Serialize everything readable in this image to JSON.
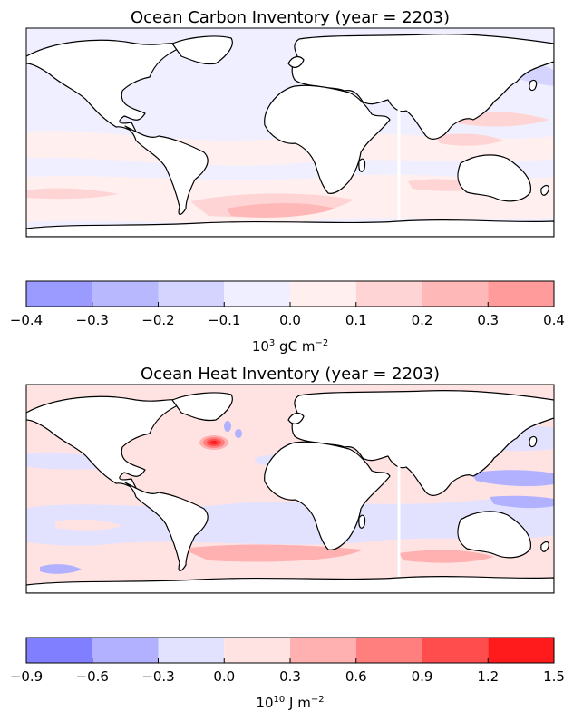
{
  "chart_data": [
    {
      "type": "heatmap",
      "title": "Ocean Carbon Inventory (year = 2203)",
      "map": "world-map",
      "colorbar": {
        "boundaries": [
          -0.4,
          -0.3,
          -0.2,
          -0.1,
          0.0,
          0.1,
          0.2,
          0.3,
          0.4
        ],
        "tick_labels": [
          "−0.4",
          "−0.3",
          "−0.2",
          "−0.1",
          "0.0",
          "0.1",
          "0.2",
          "0.3",
          "0.4"
        ],
        "colors": [
          "#9b9bff",
          "#b8b8ff",
          "#d4d4ff",
          "#efefff",
          "#ffefef",
          "#ffd4d4",
          "#ffb8b8",
          "#ff9b9b"
        ],
        "label_base": "10",
        "label_exp": "3",
        "label_unit": " gC m",
        "label_unit_exp": "−2"
      }
    },
    {
      "type": "heatmap",
      "title": "Ocean Heat Inventory (year = 2203)",
      "map": "world-map",
      "colorbar": {
        "boundaries": [
          -0.9,
          -0.6,
          -0.3,
          0.0,
          0.3,
          0.6,
          0.9,
          1.2,
          1.5
        ],
        "tick_labels": [
          "−0.9",
          "−0.6",
          "−0.3",
          "0.0",
          "0.3",
          "0.6",
          "0.9",
          "1.2",
          "1.5"
        ],
        "colors": [
          "#7f7fff",
          "#b1b1ff",
          "#e2e2ff",
          "#ffe2e2",
          "#ffb1b1",
          "#ff7f7f",
          "#ff4d4d",
          "#ff1b1b"
        ],
        "label_base": "10",
        "label_exp": "10",
        "label_unit": " J m",
        "label_unit_exp": "−2"
      }
    }
  ]
}
